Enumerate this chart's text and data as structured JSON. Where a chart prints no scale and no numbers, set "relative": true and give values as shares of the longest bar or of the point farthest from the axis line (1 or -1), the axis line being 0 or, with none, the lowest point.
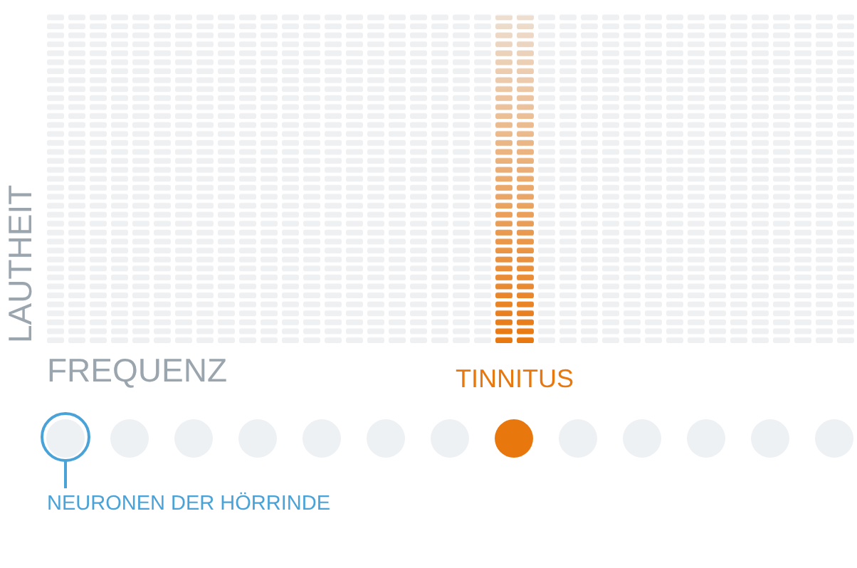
{
  "chart_data": {
    "type": "bar",
    "relative": true,
    "categories": [
      "TINNITUS"
    ],
    "values": [
      1
    ],
    "color": "#e8770e",
    "annotations": [
      "FREQUENZ",
      "LAUTHEIT",
      "NEURONEN DER HÖRRINDE"
    ]
  }
}
